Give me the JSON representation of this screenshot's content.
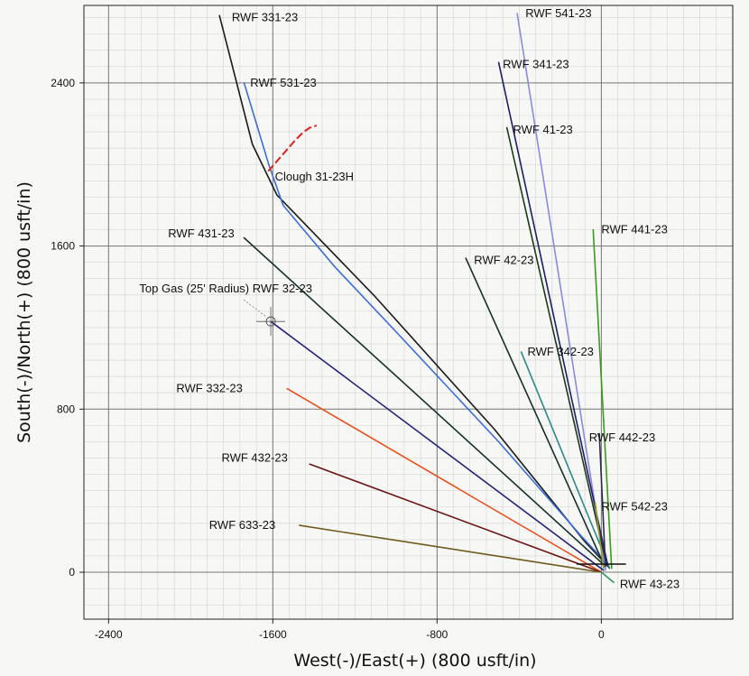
{
  "chart_data": {
    "type": "line",
    "xlabel": "West(-)/East(+) (800 usft/in)",
    "ylabel": "South(-)/North(+) (800 usft/in)",
    "xlim": [
      -2520,
      640
    ],
    "ylim": [
      -230,
      2780
    ],
    "x_ticks": [
      -2400,
      -1600,
      -800,
      0
    ],
    "y_ticks": [
      0,
      800,
      1600,
      2400
    ],
    "grid": true,
    "series": [
      {
        "name": "RWF 331-23",
        "color": "#1a1a1a",
        "points": [
          [
            40,
            20
          ],
          [
            -80,
            150
          ],
          [
            -520,
            700
          ],
          [
            -1100,
            1350
          ],
          [
            -1580,
            1850
          ],
          [
            -1700,
            2100
          ],
          [
            -1860,
            2730
          ]
        ]
      },
      {
        "name": "RWF 531-23",
        "color": "#3a6ed8",
        "points": [
          [
            30,
            40
          ],
          [
            -100,
            180
          ],
          [
            -500,
            640
          ],
          [
            -1000,
            1180
          ],
          [
            -1300,
            1500
          ],
          [
            -1550,
            1800
          ],
          [
            -1620,
            2000
          ],
          [
            -1740,
            2400
          ]
        ]
      },
      {
        "name": "RWF 431-23",
        "color": "#15302a",
        "points": [
          [
            20,
            30
          ],
          [
            -1740,
            1640
          ]
        ]
      },
      {
        "name": "RWF 32-23",
        "color": "#23237a",
        "points": [
          [
            10,
            10
          ],
          [
            -1610,
            1230
          ]
        ]
      },
      {
        "name": "RWF 332-23",
        "color": "#e8501a",
        "points": [
          [
            0,
            0
          ],
          [
            -1530,
            900
          ]
        ]
      },
      {
        "name": "RWF 432-23",
        "color": "#6b1414",
        "points": [
          [
            0,
            0
          ],
          [
            -1420,
            530
          ]
        ]
      },
      {
        "name": "RWF 633-23",
        "color": "#6e5a1c",
        "points": [
          [
            0,
            0
          ],
          [
            -1470,
            230
          ]
        ]
      },
      {
        "name": "RWF 42-23",
        "color": "#16302a",
        "points": [
          [
            20,
            20
          ],
          [
            -660,
            1540
          ]
        ]
      },
      {
        "name": "RWF 342-23",
        "color": "#2a8a8a",
        "points": [
          [
            40,
            20
          ],
          [
            -390,
            1080
          ]
        ]
      },
      {
        "name": "RWF 541-23",
        "color": "#8a8ae0",
        "points": [
          [
            20,
            10
          ],
          [
            -410,
            2740
          ]
        ]
      },
      {
        "name": "RWF 341-23",
        "color": "#1e1e6a",
        "points": [
          [
            30,
            40
          ],
          [
            -500,
            2500
          ]
        ]
      },
      {
        "name": "RWF 41-23",
        "color": "#1a3a1a",
        "points": [
          [
            20,
            60
          ],
          [
            -460,
            2180
          ]
        ]
      },
      {
        "name": "RWF 441-23",
        "color": "#3a9a1a",
        "points": [
          [
            50,
            20
          ],
          [
            -40,
            1680
          ]
        ]
      },
      {
        "name": "RWF 442-23",
        "color": "#2a2a50",
        "points": [
          [
            20,
            30
          ],
          [
            -10,
            680
          ]
        ]
      },
      {
        "name": "RWF 542-23",
        "color": "#9a9a30",
        "points": [
          [
            10,
            20
          ],
          [
            -30,
            340
          ]
        ]
      },
      {
        "name": "RWF 43-23",
        "color": "#2a9a60",
        "points": [
          [
            0,
            0
          ],
          [
            60,
            -50
          ]
        ]
      },
      {
        "name": "Clough 31-23H",
        "color": "#e02020",
        "dashed": true,
        "points": [
          [
            -1620,
            1970
          ],
          [
            -1490,
            2120
          ],
          [
            -1450,
            2160
          ],
          [
            -1420,
            2180
          ],
          [
            -1390,
            2190
          ]
        ]
      }
    ],
    "labels": [
      {
        "text": "RWF 331-23",
        "x": -1800,
        "y": 2720
      },
      {
        "text": "RWF 531-23",
        "x": -1710,
        "y": 2400
      },
      {
        "text": "Clough 31-23H",
        "x": -1590,
        "y": 1940
      },
      {
        "text": "RWF 431-23",
        "x": -2110,
        "y": 1660
      },
      {
        "text": "Top Gas (25' Radius) RWF 32-23",
        "x": -2250,
        "y": 1390
      },
      {
        "text": "RWF 332-23",
        "x": -2070,
        "y": 900
      },
      {
        "text": "RWF 432-23",
        "x": -1850,
        "y": 560
      },
      {
        "text": "RWF 633-23",
        "x": -1910,
        "y": 230
      },
      {
        "text": "RWF 541-23",
        "x": -370,
        "y": 2740
      },
      {
        "text": "RWF 341-23",
        "x": -480,
        "y": 2490
      },
      {
        "text": "RWF 41-23",
        "x": -430,
        "y": 2170
      },
      {
        "text": "RWF 441-23",
        "x": 0,
        "y": 1680
      },
      {
        "text": "RWF 42-23",
        "x": -620,
        "y": 1530
      },
      {
        "text": "RWF 342-23",
        "x": -360,
        "y": 1080
      },
      {
        "text": "RWF 442-23",
        "x": -60,
        "y": 660
      },
      {
        "text": "RWF 542-23",
        "x": 0,
        "y": 320
      },
      {
        "text": "RWF 43-23",
        "x": 90,
        "y": -60
      }
    ],
    "target": {
      "x": -1610,
      "y": 1230
    }
  }
}
